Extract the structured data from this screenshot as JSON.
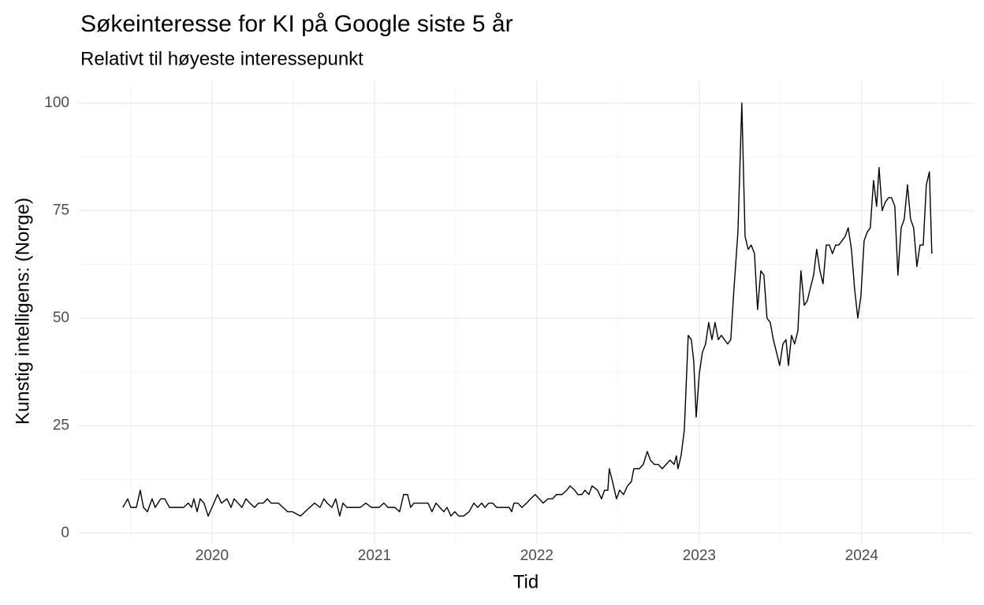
{
  "chart_data": {
    "type": "line",
    "title": "Søkeinteresse for KI på Google siste 5 år",
    "subtitle": "Relativt til høyeste interessepunkt",
    "x_label": "Tid",
    "y_label": "Kunstig intelligens: (Norge)",
    "grid": true,
    "xlim": [
      2019.18,
      2024.69
    ],
    "ylim": [
      -2.4,
      105.1
    ],
    "xticks": [
      2020,
      2021,
      2022,
      2023,
      2024
    ],
    "yticks": [
      0,
      25,
      50,
      75,
      100
    ],
    "x": [
      2019.451,
      2019.481,
      2019.5,
      2019.534,
      2019.558,
      2019.578,
      2019.602,
      2019.631,
      2019.65,
      2019.684,
      2019.709,
      2019.738,
      2019.777,
      2019.825,
      2019.854,
      2019.874,
      2019.888,
      2019.908,
      2019.927,
      2019.951,
      2019.976,
      2020.0,
      2020.034,
      2020.058,
      2020.092,
      2020.117,
      2020.136,
      2020.16,
      2020.184,
      2020.209,
      2020.233,
      2020.262,
      2020.286,
      2020.316,
      2020.34,
      2020.364,
      2020.408,
      2020.437,
      2020.466,
      2020.495,
      2020.544,
      2020.573,
      2020.602,
      2020.631,
      2020.665,
      2020.689,
      2020.709,
      2020.738,
      2020.762,
      2020.786,
      2020.806,
      2020.83,
      2020.879,
      2020.913,
      2020.947,
      2020.981,
      2021.029,
      2021.058,
      2021.083,
      2021.126,
      2021.155,
      2021.18,
      2021.204,
      2021.223,
      2021.243,
      2021.286,
      2021.33,
      2021.354,
      2021.379,
      2021.403,
      2021.427,
      2021.447,
      2021.471,
      2021.495,
      2021.519,
      2021.549,
      2021.583,
      2021.612,
      2021.636,
      2021.66,
      2021.68,
      2021.704,
      2021.728,
      2021.752,
      2021.806,
      2021.83,
      2021.845,
      2021.859,
      2021.883,
      2021.908,
      2021.937,
      2021.961,
      2021.99,
      2022.015,
      2022.039,
      2022.068,
      2022.097,
      2022.121,
      2022.155,
      2022.184,
      2022.204,
      2022.233,
      2022.252,
      2022.277,
      2022.296,
      2022.32,
      2022.34,
      2022.374,
      2022.398,
      2022.417,
      2022.437,
      2022.446,
      2022.466,
      2022.49,
      2022.51,
      2022.534,
      2022.558,
      2022.582,
      2022.597,
      2022.631,
      2022.655,
      2022.68,
      2022.699,
      2022.723,
      2022.747,
      2022.772,
      2022.796,
      2022.82,
      2022.845,
      2022.859,
      2022.869,
      2022.888,
      2022.908,
      2022.932,
      2022.951,
      2022.966,
      2022.981,
      2023.0,
      2023.019,
      2023.039,
      2023.058,
      2023.078,
      2023.097,
      2023.117,
      2023.136,
      2023.155,
      2023.175,
      2023.194,
      2023.214,
      2023.238,
      2023.262,
      2023.282,
      2023.301,
      2023.32,
      2023.34,
      2023.359,
      2023.379,
      2023.398,
      2023.417,
      2023.437,
      2023.456,
      2023.476,
      2023.495,
      2023.515,
      2023.534,
      2023.549,
      2023.568,
      2023.587,
      2023.607,
      2023.626,
      2023.646,
      2023.665,
      2023.684,
      2023.704,
      2023.723,
      2023.743,
      2023.762,
      2023.782,
      2023.801,
      2023.82,
      2023.84,
      2023.859,
      2023.879,
      2023.898,
      2023.917,
      2023.937,
      2023.956,
      2023.976,
      2023.995,
      2024.015,
      2024.034,
      2024.053,
      2024.073,
      2024.092,
      2024.107,
      2024.126,
      2024.146,
      2024.165,
      2024.184,
      2024.204,
      2024.223,
      2024.243,
      2024.262,
      2024.282,
      2024.301,
      2024.32,
      2024.34,
      2024.359,
      2024.379,
      2024.398,
      2024.417,
      2024.432
    ],
    "series": [
      {
        "name": "Kunstig intelligens",
        "color": "#000000",
        "values": [
          6,
          8,
          6,
          6,
          10,
          6,
          5,
          8,
          6,
          8,
          8,
          6,
          6,
          6,
          7,
          6,
          8,
          5,
          8,
          7,
          4,
          6,
          9,
          7,
          8,
          6,
          8,
          7,
          6,
          8,
          7,
          6,
          7,
          7,
          8,
          7,
          7,
          6,
          5,
          5,
          4,
          5,
          6,
          7,
          6,
          8,
          7,
          6,
          8,
          4,
          7,
          6,
          6,
          6,
          7,
          6,
          6,
          7,
          6,
          6,
          5,
          9,
          9,
          6,
          7,
          7,
          7,
          5,
          7,
          6,
          5,
          6,
          4,
          5,
          4,
          4,
          5,
          7,
          6,
          7,
          6,
          7,
          7,
          6,
          6,
          6,
          5,
          7,
          7,
          6,
          7,
          8,
          9,
          8,
          7,
          8,
          8,
          9,
          9,
          10,
          11,
          10,
          9,
          9,
          10,
          9,
          11,
          10,
          8,
          10,
          10,
          15,
          12,
          8,
          10,
          9,
          11,
          12,
          15,
          15,
          16,
          19,
          17,
          16,
          16,
          15,
          16,
          17,
          16,
          18,
          15,
          18,
          24,
          46,
          45,
          40,
          27,
          37,
          42,
          44,
          49,
          45,
          49,
          45,
          46,
          45,
          44,
          45,
          57,
          70,
          100,
          69,
          66,
          67,
          65,
          52,
          61,
          60,
          50,
          49,
          45,
          42,
          39,
          44,
          45,
          39,
          46,
          44,
          47,
          61,
          53,
          54,
          57,
          60,
          66,
          61,
          58,
          67,
          67,
          65,
          67,
          67,
          68,
          69,
          71,
          66,
          57,
          50,
          55,
          68,
          70,
          71,
          82,
          76,
          85,
          75,
          77,
          78,
          78,
          76,
          60,
          71,
          73,
          81,
          73,
          71,
          62,
          67,
          67,
          81,
          84,
          65
        ]
      }
    ]
  }
}
